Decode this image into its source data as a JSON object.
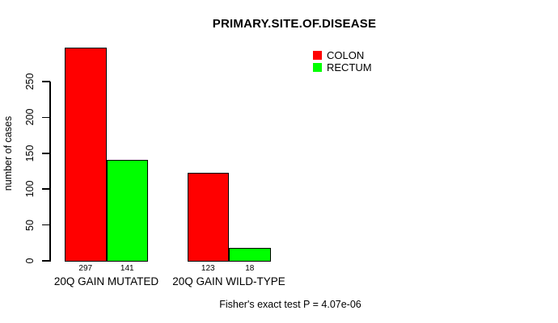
{
  "chart_data": {
    "type": "bar",
    "title": "PRIMARY.SITE.OF.DISEASE",
    "ylabel": "number of cases",
    "xlabel": "",
    "categories": [
      "20Q GAIN MUTATED",
      "20Q GAIN WILD-TYPE"
    ],
    "series": [
      {
        "name": "COLON",
        "color": "#ff0000",
        "values": [
          297,
          123
        ]
      },
      {
        "name": "RECTUM",
        "color": "#00ff00",
        "values": [
          141,
          18
        ]
      }
    ],
    "yticks": [
      0,
      50,
      100,
      150,
      200,
      250
    ],
    "ylim": [
      0,
      297
    ],
    "grid": false,
    "legend_position": "topright",
    "show_value_labels_under_bars": true,
    "footnote": "Fisher's exact test P = 4.07e-06"
  }
}
